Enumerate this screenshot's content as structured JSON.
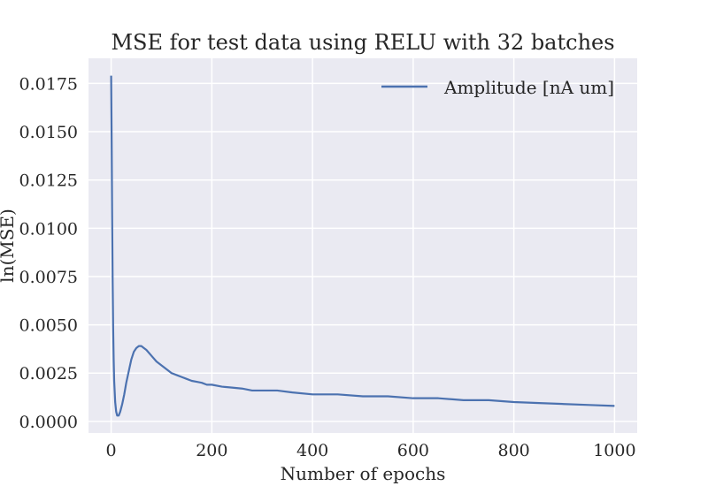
{
  "chart_data": {
    "type": "line",
    "title": "MSE for test data using RELU with 32 batches",
    "xlabel": "Number of epochs",
    "ylabel": "ln(MSE)",
    "xlim": [
      -45,
      1045
    ],
    "ylim": [
      -0.0006,
      0.0188
    ],
    "xticks": [
      0,
      200,
      400,
      600,
      800,
      1000
    ],
    "yticks": [
      0.0,
      0.0025,
      0.005,
      0.0075,
      0.01,
      0.0125,
      0.015,
      0.0175
    ],
    "xtick_labels": [
      "0",
      "200",
      "400",
      "600",
      "800",
      "1000"
    ],
    "ytick_labels": [
      "0.0000",
      "0.0025",
      "0.0050",
      "0.0075",
      "0.0100",
      "0.0125",
      "0.0150",
      "0.0175"
    ],
    "grid": true,
    "legend_position": "top-right",
    "series": [
      {
        "name": "Amplitude [nA um]",
        "color": "#4c72b0",
        "x": [
          0,
          1,
          2,
          3,
          4,
          5,
          6,
          8,
          10,
          12,
          15,
          18,
          22,
          26,
          30,
          35,
          40,
          45,
          50,
          55,
          60,
          65,
          70,
          80,
          90,
          100,
          110,
          120,
          130,
          140,
          150,
          160,
          170,
          180,
          190,
          200,
          220,
          240,
          260,
          280,
          300,
          330,
          360,
          400,
          450,
          500,
          550,
          600,
          650,
          700,
          750,
          800,
          850,
          900,
          950,
          1000
        ],
        "values": [
          0.0179,
          0.0145,
          0.0105,
          0.0072,
          0.0048,
          0.0032,
          0.0021,
          0.001,
          0.0005,
          0.0003,
          0.0003,
          0.0005,
          0.0009,
          0.0014,
          0.002,
          0.0026,
          0.0032,
          0.0036,
          0.0038,
          0.0039,
          0.0039,
          0.0038,
          0.0037,
          0.0034,
          0.0031,
          0.0029,
          0.0027,
          0.0025,
          0.0024,
          0.0023,
          0.0022,
          0.0021,
          0.00205,
          0.002,
          0.0019,
          0.0019,
          0.0018,
          0.00175,
          0.0017,
          0.0016,
          0.0016,
          0.0016,
          0.0015,
          0.0014,
          0.0014,
          0.0013,
          0.0013,
          0.0012,
          0.0012,
          0.0011,
          0.0011,
          0.001,
          0.00095,
          0.0009,
          0.00085,
          0.0008
        ]
      }
    ]
  }
}
